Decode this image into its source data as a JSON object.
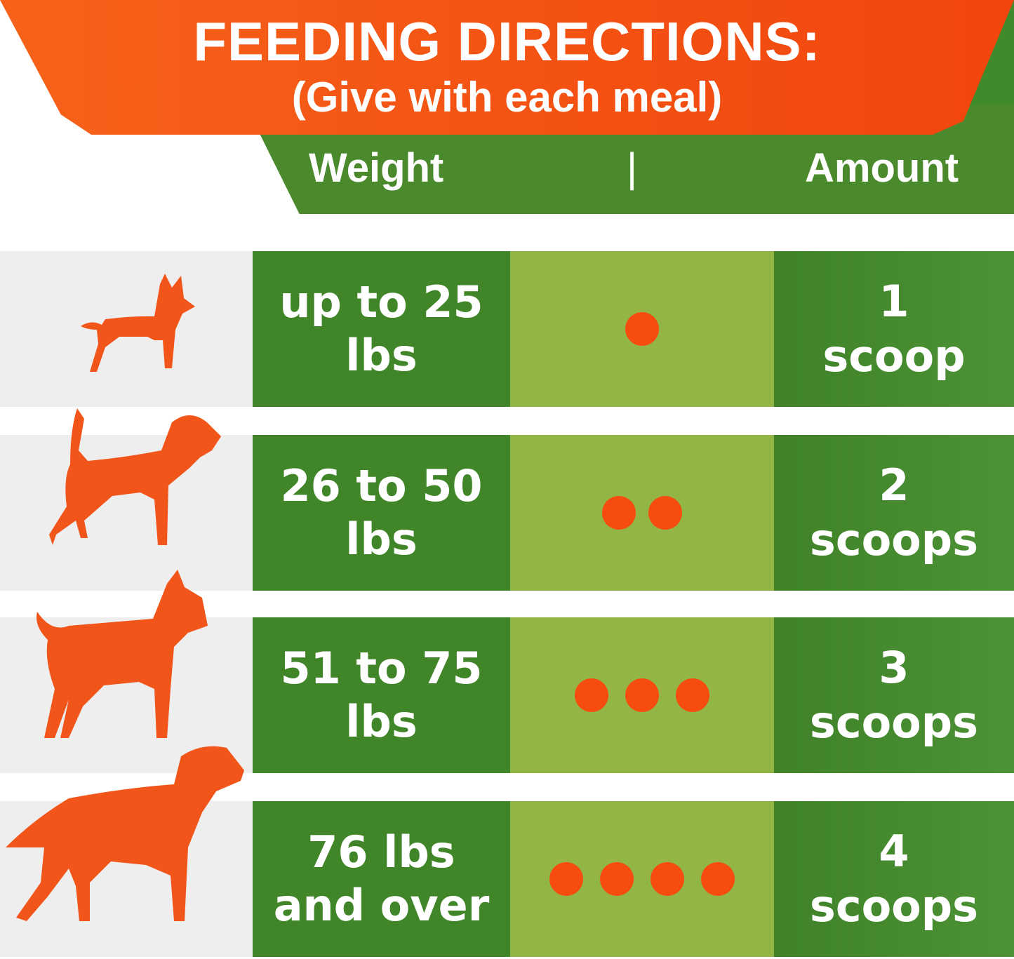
{
  "header": {
    "title": "FEEDING DIRECTIONS:",
    "subtitle": "(Give with each meal)",
    "col_weight": "Weight",
    "separator": "|",
    "col_amount": "Amount"
  },
  "colors": {
    "orange": "#f74c0f",
    "dark_green": "#418529",
    "light_green": "#93b545"
  },
  "rows": [
    {
      "dog_icon": "small-dog-icon",
      "weight": "up to 25 lbs",
      "scoops": 1,
      "amount_number": "1",
      "amount_unit": "scoop"
    },
    {
      "dog_icon": "medium-dog-icon",
      "weight": "26 to 50 lbs",
      "scoops": 2,
      "amount_number": "2",
      "amount_unit": "scoops"
    },
    {
      "dog_icon": "large-dog-icon",
      "weight": "51 to 75 lbs",
      "scoops": 3,
      "amount_number": "3",
      "amount_unit": "scoops"
    },
    {
      "dog_icon": "extra-large-dog-icon",
      "weight": "76 lbs and over",
      "scoops": 4,
      "amount_number": "4",
      "amount_unit": "scoops"
    }
  ]
}
